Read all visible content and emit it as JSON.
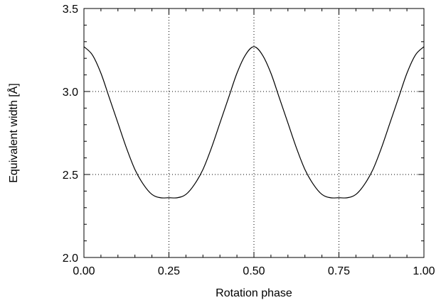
{
  "chart_data": {
    "type": "line",
    "xlabel": "Rotation phase",
    "ylabel": "Equivalent width [Å]",
    "xlim": [
      0.0,
      1.0
    ],
    "ylim": [
      2.0,
      3.5
    ],
    "xticks": [
      0.0,
      0.25,
      0.5,
      0.75,
      1.0
    ],
    "xtick_labels": [
      "0.00",
      "0.25",
      "0.50",
      "0.75",
      "1.00"
    ],
    "yticks": [
      2.0,
      2.5,
      3.0,
      3.5
    ],
    "ytick_labels": [
      "2.0",
      "2.5",
      "3.0",
      "3.5"
    ],
    "x_minor_step": 0.05,
    "y_minor_step": 0.1,
    "grid": "dotted at major ticks",
    "legend": "none",
    "series": [
      {
        "x": [
          0.0,
          0.025,
          0.05,
          0.075,
          0.1,
          0.125,
          0.15,
          0.175,
          0.2,
          0.225,
          0.25,
          0.275,
          0.3,
          0.325,
          0.35,
          0.375,
          0.4,
          0.425,
          0.45,
          0.475,
          0.5,
          0.525,
          0.55,
          0.575,
          0.6,
          0.625,
          0.65,
          0.675,
          0.7,
          0.725,
          0.75,
          0.775,
          0.8,
          0.825,
          0.85,
          0.875,
          0.9,
          0.925,
          0.95,
          0.975,
          1.0
        ],
        "y": [
          3.27,
          3.22,
          3.11,
          2.96,
          2.81,
          2.66,
          2.53,
          2.44,
          2.38,
          2.36,
          2.36,
          2.36,
          2.38,
          2.44,
          2.53,
          2.66,
          2.81,
          2.96,
          3.11,
          3.22,
          3.27,
          3.22,
          3.11,
          2.96,
          2.81,
          2.66,
          2.53,
          2.44,
          2.38,
          2.36,
          2.36,
          2.36,
          2.38,
          2.44,
          2.53,
          2.66,
          2.81,
          2.96,
          3.11,
          3.22,
          3.27
        ]
      }
    ]
  }
}
